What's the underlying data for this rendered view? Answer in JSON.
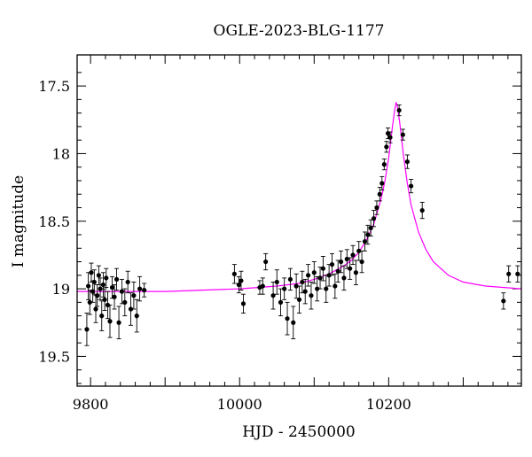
{
  "chart_data": {
    "type": "scatter",
    "title": "OGLE-2023-BLG-1177",
    "xlabel": "HJD - 2450000",
    "ylabel": "I magnitude",
    "xlim": [
      9782,
      10378
    ],
    "ylim": [
      19.72,
      17.27
    ],
    "y_inverted": true,
    "xticks": [
      9800,
      10000,
      10200
    ],
    "yticks": [
      17.5,
      18,
      18.5,
      19,
      19.5
    ],
    "xtick_labels": [
      "9800",
      "10000",
      "10200"
    ],
    "ytick_labels": [
      "17.5",
      "18",
      "18.5",
      "19",
      "19.5"
    ],
    "grid": false,
    "model_color": "#ff00ff",
    "point_color": "#000000",
    "model": {
      "baseline_mag": 19.02,
      "peak_time": 10210,
      "peak_mag": 17.62,
      "x": [
        9782,
        9850,
        9900,
        9950,
        10000,
        10050,
        10080,
        10100,
        10120,
        10140,
        10150,
        10160,
        10170,
        10180,
        10190,
        10195,
        10200,
        10205,
        10208,
        10210,
        10212,
        10215,
        10220,
        10225,
        10230,
        10240,
        10250,
        10260,
        10280,
        10300,
        10330,
        10378
      ],
      "y": [
        19.02,
        19.02,
        19.02,
        19.01,
        19.0,
        18.98,
        18.96,
        18.93,
        18.89,
        18.83,
        18.79,
        18.73,
        18.64,
        18.52,
        18.33,
        18.2,
        18.03,
        17.8,
        17.68,
        17.62,
        17.66,
        17.78,
        18.02,
        18.22,
        18.38,
        18.58,
        18.71,
        18.8,
        18.9,
        18.95,
        18.98,
        19.0
      ]
    },
    "series": [
      {
        "points": [
          {
            "x": 9795,
            "y": 19.3,
            "err": 0.12
          },
          {
            "x": 9797,
            "y": 18.98,
            "err": 0.1
          },
          {
            "x": 9799,
            "y": 19.1,
            "err": 0.09
          },
          {
            "x": 9801,
            "y": 18.88,
            "err": 0.07
          },
          {
            "x": 9803,
            "y": 19.02,
            "err": 0.08
          },
          {
            "x": 9805,
            "y": 18.95,
            "err": 0.09
          },
          {
            "x": 9807,
            "y": 19.15,
            "err": 0.1
          },
          {
            "x": 9809,
            "y": 19.05,
            "err": 0.08
          },
          {
            "x": 9811,
            "y": 18.9,
            "err": 0.07
          },
          {
            "x": 9813,
            "y": 19.0,
            "err": 0.08
          },
          {
            "x": 9815,
            "y": 19.2,
            "err": 0.11
          },
          {
            "x": 9817,
            "y": 18.97,
            "err": 0.09
          },
          {
            "x": 9819,
            "y": 19.08,
            "err": 0.08
          },
          {
            "x": 9821,
            "y": 18.92,
            "err": 0.07
          },
          {
            "x": 9823,
            "y": 19.12,
            "err": 0.1
          },
          {
            "x": 9826,
            "y": 19.24,
            "err": 0.12
          },
          {
            "x": 9829,
            "y": 18.99,
            "err": 0.08
          },
          {
            "x": 9832,
            "y": 19.06,
            "err": 0.09
          },
          {
            "x": 9835,
            "y": 18.93,
            "err": 0.08
          },
          {
            "x": 9838,
            "y": 19.25,
            "err": 0.12
          },
          {
            "x": 9842,
            "y": 19.02,
            "err": 0.09
          },
          {
            "x": 9846,
            "y": 19.1,
            "err": 0.1
          },
          {
            "x": 9850,
            "y": 18.95,
            "err": 0.08
          },
          {
            "x": 9854,
            "y": 19.15,
            "err": 0.12
          },
          {
            "x": 9858,
            "y": 19.05,
            "err": 0.1
          },
          {
            "x": 9862,
            "y": 19.2,
            "err": 0.12
          },
          {
            "x": 9866,
            "y": 19.0,
            "err": 0.09
          },
          {
            "x": 9872,
            "y": 19.01,
            "err": 0.05
          },
          {
            "x": 9993,
            "y": 18.89,
            "err": 0.07
          },
          {
            "x": 9999,
            "y": 18.97,
            "err": 0.06
          },
          {
            "x": 10002,
            "y": 18.94,
            "err": 0.07
          },
          {
            "x": 10005,
            "y": 19.11,
            "err": 0.07
          },
          {
            "x": 10027,
            "y": 18.99,
            "err": 0.05
          },
          {
            "x": 10031,
            "y": 18.98,
            "err": 0.06
          },
          {
            "x": 10035,
            "y": 18.8,
            "err": 0.06
          },
          {
            "x": 10045,
            "y": 19.05,
            "err": 0.1
          },
          {
            "x": 10050,
            "y": 18.95,
            "err": 0.09
          },
          {
            "x": 10055,
            "y": 19.1,
            "err": 0.1
          },
          {
            "x": 10060,
            "y": 19.0,
            "err": 0.08
          },
          {
            "x": 10064,
            "y": 19.22,
            "err": 0.12
          },
          {
            "x": 10068,
            "y": 18.93,
            "err": 0.08
          },
          {
            "x": 10072,
            "y": 19.25,
            "err": 0.12
          },
          {
            "x": 10076,
            "y": 18.98,
            "err": 0.09
          },
          {
            "x": 10080,
            "y": 19.08,
            "err": 0.1
          },
          {
            "x": 10084,
            "y": 18.95,
            "err": 0.08
          },
          {
            "x": 10088,
            "y": 19.02,
            "err": 0.09
          },
          {
            "x": 10092,
            "y": 18.9,
            "err": 0.08
          },
          {
            "x": 10096,
            "y": 19.05,
            "err": 0.1
          },
          {
            "x": 10100,
            "y": 18.88,
            "err": 0.08
          },
          {
            "x": 10104,
            "y": 19.0,
            "err": 0.09
          },
          {
            "x": 10108,
            "y": 18.92,
            "err": 0.08
          },
          {
            "x": 10112,
            "y": 18.85,
            "err": 0.09
          },
          {
            "x": 10116,
            "y": 19.0,
            "err": 0.1
          },
          {
            "x": 10120,
            "y": 18.9,
            "err": 0.08
          },
          {
            "x": 10124,
            "y": 18.82,
            "err": 0.08
          },
          {
            "x": 10128,
            "y": 18.98,
            "err": 0.09
          },
          {
            "x": 10132,
            "y": 18.87,
            "err": 0.08
          },
          {
            "x": 10136,
            "y": 18.8,
            "err": 0.08
          },
          {
            "x": 10140,
            "y": 18.92,
            "err": 0.09
          },
          {
            "x": 10144,
            "y": 18.78,
            "err": 0.07
          },
          {
            "x": 10148,
            "y": 18.85,
            "err": 0.08
          },
          {
            "x": 10152,
            "y": 18.75,
            "err": 0.07
          },
          {
            "x": 10156,
            "y": 18.88,
            "err": 0.09
          },
          {
            "x": 10160,
            "y": 18.72,
            "err": 0.07
          },
          {
            "x": 10164,
            "y": 18.8,
            "err": 0.08
          },
          {
            "x": 10168,
            "y": 18.65,
            "err": 0.07
          },
          {
            "x": 10172,
            "y": 18.6,
            "err": 0.07
          },
          {
            "x": 10176,
            "y": 18.55,
            "err": 0.06
          },
          {
            "x": 10180,
            "y": 18.48,
            "err": 0.06
          },
          {
            "x": 10184,
            "y": 18.4,
            "err": 0.05
          },
          {
            "x": 10188,
            "y": 18.3,
            "err": 0.05
          },
          {
            "x": 10191,
            "y": 18.22,
            "err": 0.05
          },
          {
            "x": 10194,
            "y": 18.08,
            "err": 0.04
          },
          {
            "x": 10197,
            "y": 17.95,
            "err": 0.04
          },
          {
            "x": 10199,
            "y": 17.85,
            "err": 0.04
          },
          {
            "x": 10202,
            "y": 17.88,
            "err": 0.04
          },
          {
            "x": 10214,
            "y": 17.68,
            "err": 0.04
          },
          {
            "x": 10219,
            "y": 17.86,
            "err": 0.04
          },
          {
            "x": 10225,
            "y": 18.06,
            "err": 0.05
          },
          {
            "x": 10230,
            "y": 18.24,
            "err": 0.05
          },
          {
            "x": 10245,
            "y": 18.42,
            "err": 0.06
          },
          {
            "x": 10354,
            "y": 19.09,
            "err": 0.06
          },
          {
            "x": 10361,
            "y": 18.89,
            "err": 0.06
          },
          {
            "x": 10373,
            "y": 18.89,
            "err": 0.06
          }
        ]
      }
    ]
  }
}
